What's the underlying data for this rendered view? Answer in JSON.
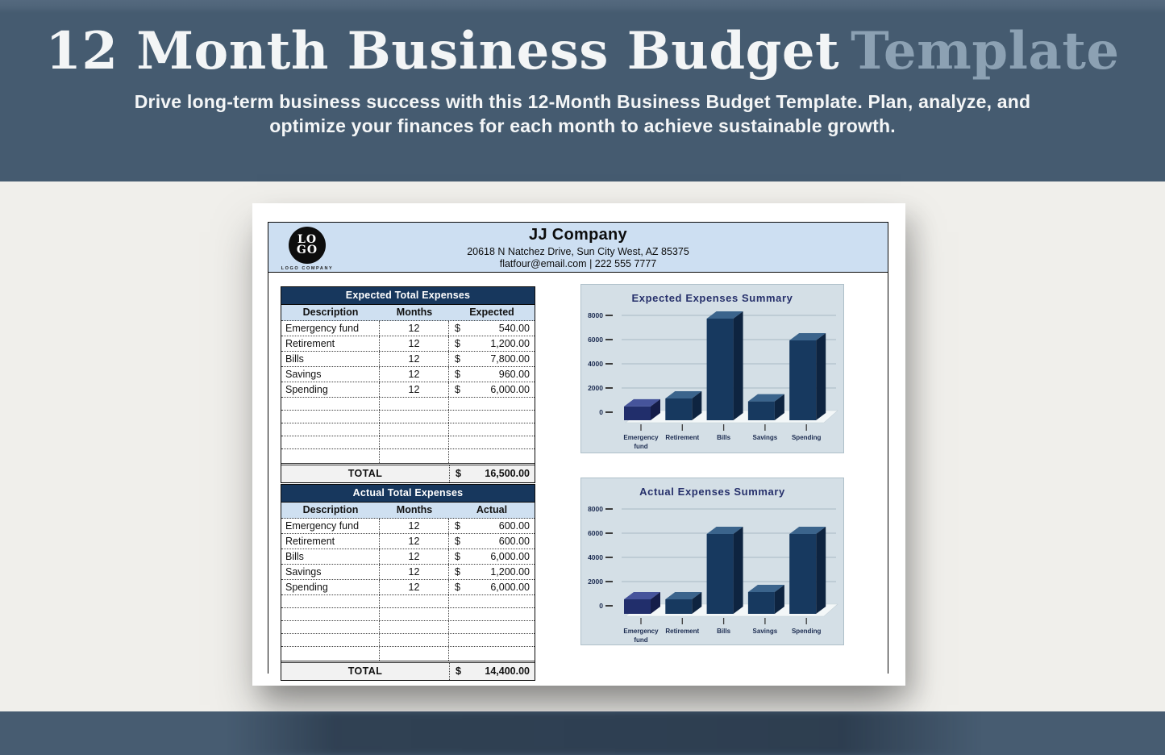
{
  "hero": {
    "title": "12 Month Business Budget",
    "title_accent": "Template",
    "subtitle_line1": "Drive long-term business success with this 12-Month Business Budget Template. Plan, analyze, and",
    "subtitle_line2": "optimize your finances for each month to achieve sustainable growth."
  },
  "company": {
    "logo_top": "LO",
    "logo_bottom": "GO",
    "logo_caption": "LOGO COMPANY",
    "name": "JJ Company",
    "address": "20618 N Natchez Drive, Sun City West, AZ 85375",
    "contact": "flatfour@email.com | 222 555 7777"
  },
  "tables": {
    "expected": {
      "title": "Expected Total Expenses",
      "columns": [
        "Description",
        "Months",
        "Expected"
      ],
      "rows": [
        {
          "description": "Emergency fund",
          "months": "12",
          "currency": "$",
          "amount": "540.00"
        },
        {
          "description": "Retirement",
          "months": "12",
          "currency": "$",
          "amount": "1,200.00"
        },
        {
          "description": "Bills",
          "months": "12",
          "currency": "$",
          "amount": "7,800.00"
        },
        {
          "description": "Savings",
          "months": "12",
          "currency": "$",
          "amount": "960.00"
        },
        {
          "description": "Spending",
          "months": "12",
          "currency": "$",
          "amount": "6,000.00"
        }
      ],
      "empty_row_count": 5,
      "total_label": "TOTAL",
      "total_currency": "$",
      "total_amount": "16,500.00"
    },
    "actual": {
      "title": "Actual Total Expenses",
      "columns": [
        "Description",
        "Months",
        "Actual"
      ],
      "rows": [
        {
          "description": "Emergency fund",
          "months": "12",
          "currency": "$",
          "amount": "600.00"
        },
        {
          "description": "Retirement",
          "months": "12",
          "currency": "$",
          "amount": "600.00"
        },
        {
          "description": "Bills",
          "months": "12",
          "currency": "$",
          "amount": "6,000.00"
        },
        {
          "description": "Savings",
          "months": "12",
          "currency": "$",
          "amount": "1,200.00"
        },
        {
          "description": "Spending",
          "months": "12",
          "currency": "$",
          "amount": "6,000.00"
        }
      ],
      "empty_row_count": 5,
      "total_label": "TOTAL",
      "total_currency": "$",
      "total_amount": "14,400.00"
    }
  },
  "chart_data": [
    {
      "type": "bar",
      "variant": "3d-column",
      "title": "Expected Expenses Summary",
      "categories": [
        "Emergency fund",
        "Retirement",
        "Bills",
        "Savings",
        "Spending"
      ],
      "values": [
        540,
        1200,
        7800,
        960,
        6000
      ],
      "ylim": [
        0,
        8000
      ],
      "yticks": [
        0,
        2000,
        4000,
        6000,
        8000
      ],
      "grid": true,
      "legend": false,
      "colors": {
        "bar_front": "#17395f",
        "bar_top": "#3b648c",
        "bar_side": "#0e2440",
        "first_bar_front": "#212e6b",
        "first_bar_top": "#46549b",
        "first_bar_side": "#151d49",
        "axis_text": "#1b2b50",
        "title": "#26306b",
        "grid": "#a9bac4",
        "floor": "#f3f7f8",
        "panel_bg": "#d4dfe6"
      }
    },
    {
      "type": "bar",
      "variant": "3d-column",
      "title": "Actual Expenses Summary",
      "categories": [
        "Emergency fund",
        "Retirement",
        "Bills",
        "Savings",
        "Spending"
      ],
      "values": [
        600,
        600,
        6000,
        1200,
        6000
      ],
      "ylim": [
        0,
        8000
      ],
      "yticks": [
        0,
        2000,
        4000,
        6000,
        8000
      ],
      "grid": true,
      "legend": false,
      "colors": {
        "bar_front": "#17395f",
        "bar_top": "#3b648c",
        "bar_side": "#0e2440",
        "first_bar_front": "#212e6b",
        "first_bar_top": "#46549b",
        "first_bar_side": "#151d49",
        "axis_text": "#1b2b50",
        "title": "#26306b",
        "grid": "#a9bac4",
        "floor": "#f3f7f8",
        "panel_bg": "#d4dfe6"
      }
    }
  ],
  "colors": {
    "hero_bg": "#455b70",
    "hero_title_text": "#f3f5f6",
    "hero_accent_text": "#8ca1b3",
    "page_bg": "#f0efeb",
    "bottom_bar_bg": "#475c71",
    "table_title_bg": "#17375d",
    "table_subheader_bg": "#cfe0f1",
    "company_header_bg": "#cddff2",
    "total_row_bg": "#f2f2f2"
  }
}
